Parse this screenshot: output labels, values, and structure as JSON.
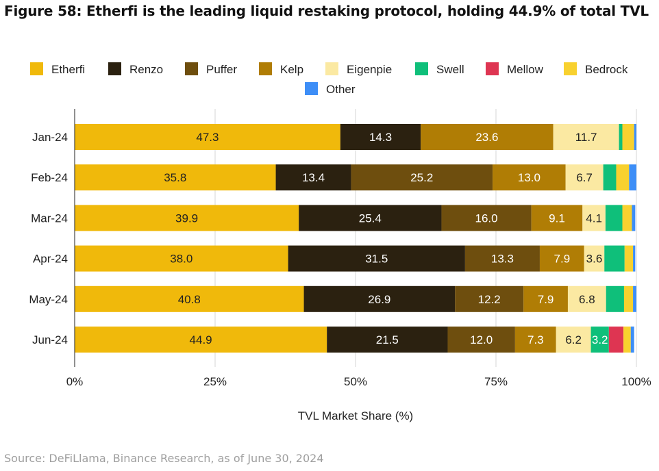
{
  "title": "Figure 58: Etherfi is the leading liquid restaking protocol, holding 44.9% of total TVL",
  "source": "Source: DeFiLlama, Binance Research, as of June 30, 2024",
  "chart_data": {
    "type": "bar",
    "orientation": "horizontal",
    "stacked": true,
    "categories": [
      "Jan-24",
      "Feb-24",
      "Mar-24",
      "Apr-24",
      "May-24",
      "Jun-24"
    ],
    "series": [
      {
        "name": "Etherfi",
        "color": "#f0b90b",
        "label_color": "#222222",
        "values": [
          47.3,
          35.8,
          39.9,
          38.0,
          40.8,
          44.9
        ],
        "labels": [
          "47.3",
          "35.8",
          "39.9",
          "38.0",
          "40.8",
          "44.9"
        ]
      },
      {
        "name": "Renzo",
        "color": "#2b2110",
        "label_color": "#ffffff",
        "values": [
          14.3,
          13.4,
          25.4,
          31.5,
          26.9,
          21.5
        ],
        "labels": [
          "14.3",
          "13.4",
          "25.4",
          "31.5",
          "26.9",
          "21.5"
        ]
      },
      {
        "name": "Puffer",
        "color": "#6e4e0e",
        "label_color": "#ffffff",
        "values": [
          0,
          25.2,
          16.0,
          13.3,
          12.2,
          12.0
        ],
        "labels": [
          "",
          "25.2",
          "16.0",
          "13.3",
          "12.2",
          "12.0"
        ]
      },
      {
        "name": "Kelp",
        "color": "#b07d05",
        "label_color": "#ffffff",
        "values": [
          23.6,
          13.0,
          9.1,
          7.9,
          7.9,
          7.3
        ],
        "labels": [
          "23.6",
          "13.0",
          "9.1",
          "7.9",
          "7.9",
          "7.3"
        ]
      },
      {
        "name": "Eigenpie",
        "color": "#fbe9a2",
        "label_color": "#222222",
        "values": [
          11.7,
          6.7,
          4.1,
          3.6,
          6.8,
          6.2
        ],
        "labels": [
          "11.7",
          "6.7",
          "4.1",
          "3.6",
          "6.8",
          "6.2"
        ]
      },
      {
        "name": "Swell",
        "color": "#0fbf7a",
        "label_color": "#ffffff",
        "values": [
          0.6,
          2.3,
          3.0,
          3.6,
          3.2,
          3.2
        ],
        "labels": [
          "",
          "",
          "",
          "",
          "",
          "3.2"
        ]
      },
      {
        "name": "Mellow",
        "color": "#de3552",
        "label_color": "#ffffff",
        "values": [
          0,
          0,
          0,
          0,
          0,
          2.6
        ],
        "labels": [
          "",
          "",
          "",
          "",
          "",
          ""
        ]
      },
      {
        "name": "Bedrock",
        "color": "#f8d12f",
        "label_color": "#222222",
        "values": [
          2.1,
          2.3,
          1.7,
          1.5,
          1.6,
          1.3
        ],
        "labels": [
          "",
          "",
          "",
          "",
          "",
          ""
        ]
      },
      {
        "name": "Other",
        "color": "#3d8ef7",
        "label_color": "#ffffff",
        "values": [
          0.4,
          1.3,
          0.6,
          0.4,
          0.6,
          0.6
        ],
        "labels": [
          "",
          "",
          "",
          "",
          "",
          ""
        ]
      }
    ],
    "xlabel": "TVL Market Share (%)",
    "ylabel": "",
    "xlim": [
      0,
      100
    ],
    "xticks": [
      0,
      25,
      50,
      75,
      100
    ],
    "xtick_labels": [
      "0%",
      "25%",
      "50%",
      "75%",
      "100%"
    ],
    "grid": true,
    "legend_position": "top"
  }
}
